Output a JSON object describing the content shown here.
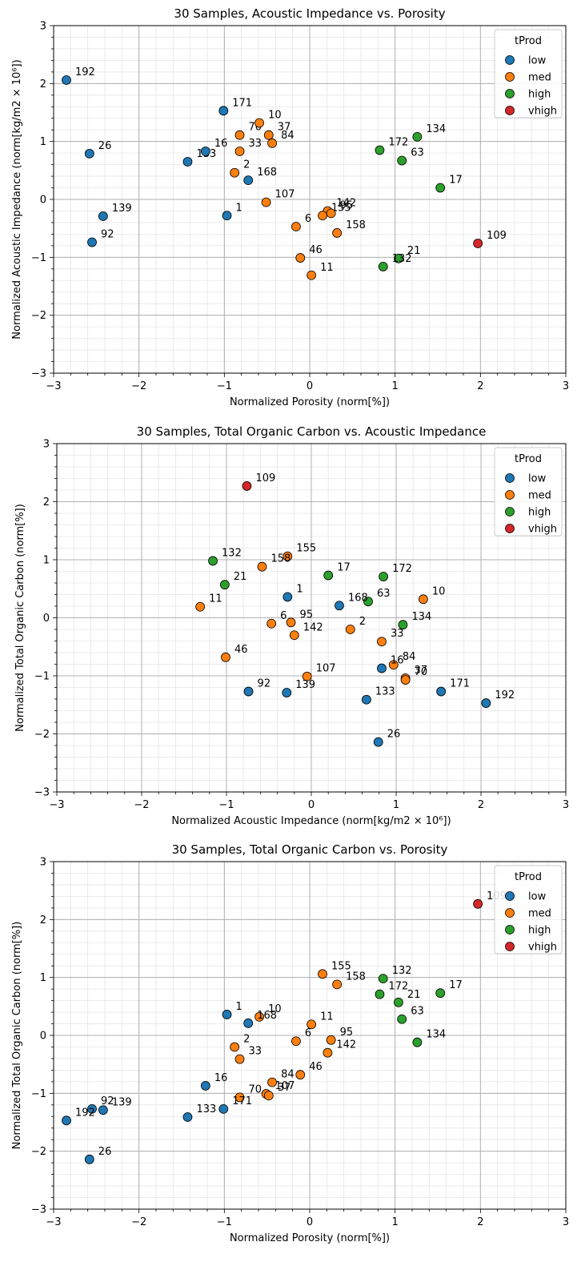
{
  "colors": {
    "low": "#1f77b4",
    "med": "#ff7f0e",
    "high": "#2ca02c",
    "vhigh": "#d62728"
  },
  "legend_title": "tProd",
  "legend_labels": [
    "low",
    "med",
    "high",
    "vhigh"
  ],
  "chart_data": [
    {
      "type": "scatter",
      "title": "30 Samples, Acoustic Impedance vs. Porosity",
      "xlabel": "Normalized Porosity (norm[%])",
      "ylabel": "Normalized Acoustic Impedance (norm[kg/m2 × 10⁶])",
      "xlim": [
        -3,
        3
      ],
      "ylim": [
        -3,
        3
      ],
      "xticks": [
        "−3",
        "−2",
        "−1",
        "0",
        "1",
        "2",
        "3"
      ],
      "yticks": [
        "−3",
        "−2",
        "−1",
        "0",
        "1",
        "2",
        "3"
      ],
      "grid": true,
      "legend": "top-right",
      "points": [
        {
          "label": "192",
          "x": -2.85,
          "y": 2.06,
          "c": "low"
        },
        {
          "label": "26",
          "x": -2.58,
          "y": 0.79,
          "c": "low"
        },
        {
          "label": "133",
          "x": -1.43,
          "y": 0.65,
          "c": "low"
        },
        {
          "label": "16",
          "x": -1.22,
          "y": 0.83,
          "c": "low"
        },
        {
          "label": "171",
          "x": -1.01,
          "y": 1.53,
          "c": "low"
        },
        {
          "label": "168",
          "x": -0.72,
          "y": 0.33,
          "c": "low"
        },
        {
          "label": "139",
          "x": -2.42,
          "y": -0.29,
          "c": "low"
        },
        {
          "label": "92",
          "x": -2.55,
          "y": -0.74,
          "c": "low"
        },
        {
          "label": "1",
          "x": -0.97,
          "y": -0.28,
          "c": "low"
        },
        {
          "label": "70",
          "x": -0.82,
          "y": 1.11,
          "c": "med"
        },
        {
          "label": "10",
          "x": -0.59,
          "y": 1.32,
          "c": "med"
        },
        {
          "label": "37",
          "x": -0.48,
          "y": 1.11,
          "c": "med"
        },
        {
          "label": "33",
          "x": -0.82,
          "y": 0.83,
          "c": "med"
        },
        {
          "label": "84",
          "x": -0.44,
          "y": 0.97,
          "c": "med"
        },
        {
          "label": "2",
          "x": -0.88,
          "y": 0.46,
          "c": "med"
        },
        {
          "label": "107",
          "x": -0.51,
          "y": -0.05,
          "c": "med"
        },
        {
          "label": "6",
          "x": -0.16,
          "y": -0.47,
          "c": "med"
        },
        {
          "label": "142",
          "x": 0.21,
          "y": -0.2,
          "c": "med"
        },
        {
          "label": "155",
          "x": 0.15,
          "y": -0.28,
          "c": "med"
        },
        {
          "label": "95",
          "x": 0.25,
          "y": -0.24,
          "c": "med"
        },
        {
          "label": "158",
          "x": 0.32,
          "y": -0.58,
          "c": "med"
        },
        {
          "label": "46",
          "x": -0.11,
          "y": -1.01,
          "c": "med"
        },
        {
          "label": "11",
          "x": 0.02,
          "y": -1.31,
          "c": "med"
        },
        {
          "label": "172",
          "x": 0.82,
          "y": 0.85,
          "c": "high"
        },
        {
          "label": "134",
          "x": 1.26,
          "y": 1.08,
          "c": "high"
        },
        {
          "label": "63",
          "x": 1.08,
          "y": 0.67,
          "c": "high"
        },
        {
          "label": "17",
          "x": 1.53,
          "y": 0.2,
          "c": "high"
        },
        {
          "label": "21",
          "x": 1.04,
          "y": -1.02,
          "c": "high"
        },
        {
          "label": "132",
          "x": 0.86,
          "y": -1.16,
          "c": "high"
        },
        {
          "label": "109",
          "x": 1.97,
          "y": -0.76,
          "c": "vhigh"
        }
      ]
    },
    {
      "type": "scatter",
      "title": "30 Samples, Total Organic Carbon vs. Acoustic Impedance",
      "xlabel": "Normalized Acoustic Impedance (norm[kg/m2 × 10⁶])",
      "ylabel": "Normalized Total Organic Carbon (norm[%])",
      "xlim": [
        -3,
        3
      ],
      "ylim": [
        -3,
        3
      ],
      "xticks": [
        "−3",
        "−2",
        "−1",
        "0",
        "1",
        "2",
        "3"
      ],
      "yticks": [
        "−3",
        "−2",
        "−1",
        "0",
        "1",
        "2",
        "3"
      ],
      "grid": true,
      "legend": "top-right",
      "points": [
        {
          "label": "109",
          "x": -0.76,
          "y": 2.27,
          "c": "vhigh"
        },
        {
          "label": "132",
          "x": -1.16,
          "y": 0.98,
          "c": "high"
        },
        {
          "label": "21",
          "x": -1.02,
          "y": 0.57,
          "c": "high"
        },
        {
          "label": "17",
          "x": 0.2,
          "y": 0.73,
          "c": "high"
        },
        {
          "label": "172",
          "x": 0.85,
          "y": 0.71,
          "c": "high"
        },
        {
          "label": "63",
          "x": 0.67,
          "y": 0.28,
          "c": "high"
        },
        {
          "label": "134",
          "x": 1.08,
          "y": -0.12,
          "c": "high"
        },
        {
          "label": "155",
          "x": -0.28,
          "y": 1.06,
          "c": "med"
        },
        {
          "label": "158",
          "x": -0.58,
          "y": 0.88,
          "c": "med"
        },
        {
          "label": "11",
          "x": -1.31,
          "y": 0.19,
          "c": "med"
        },
        {
          "label": "6",
          "x": -0.47,
          "y": -0.1,
          "c": "med"
        },
        {
          "label": "95",
          "x": -0.24,
          "y": -0.08,
          "c": "med"
        },
        {
          "label": "142",
          "x": -0.2,
          "y": -0.3,
          "c": "med"
        },
        {
          "label": "46",
          "x": -1.01,
          "y": -0.68,
          "c": "med"
        },
        {
          "label": "107",
          "x": -0.05,
          "y": -1.01,
          "c": "med"
        },
        {
          "label": "2",
          "x": 0.46,
          "y": -0.2,
          "c": "med"
        },
        {
          "label": "33",
          "x": 0.83,
          "y": -0.41,
          "c": "med"
        },
        {
          "label": "84",
          "x": 0.97,
          "y": -0.81,
          "c": "med"
        },
        {
          "label": "37",
          "x": 1.11,
          "y": -1.04,
          "c": "med"
        },
        {
          "label": "70",
          "x": 1.11,
          "y": -1.07,
          "c": "med"
        },
        {
          "label": "10",
          "x": 1.32,
          "y": 0.32,
          "c": "med"
        },
        {
          "label": "1",
          "x": -0.28,
          "y": 0.36,
          "c": "low"
        },
        {
          "label": "168",
          "x": 0.33,
          "y": 0.21,
          "c": "low"
        },
        {
          "label": "16",
          "x": 0.83,
          "y": -0.87,
          "c": "low"
        },
        {
          "label": "92",
          "x": -0.74,
          "y": -1.27,
          "c": "low"
        },
        {
          "label": "139",
          "x": -0.29,
          "y": -1.29,
          "c": "low"
        },
        {
          "label": "133",
          "x": 0.65,
          "y": -1.41,
          "c": "low"
        },
        {
          "label": "171",
          "x": 1.53,
          "y": -1.27,
          "c": "low"
        },
        {
          "label": "192",
          "x": 2.06,
          "y": -1.47,
          "c": "low"
        },
        {
          "label": "26",
          "x": 0.79,
          "y": -2.14,
          "c": "low"
        }
      ]
    },
    {
      "type": "scatter",
      "title": "30 Samples, Total Organic Carbon vs. Porosity",
      "xlabel": "Normalized Porosity (norm[%])",
      "ylabel": "Normalized Total Organic Carbon (norm[%])",
      "xlim": [
        -3,
        3
      ],
      "ylim": [
        -3,
        3
      ],
      "xticks": [
        "−3",
        "−2",
        "−1",
        "0",
        "1",
        "2",
        "3"
      ],
      "yticks": [
        "−3",
        "−2",
        "−1",
        "0",
        "1",
        "2",
        "3"
      ],
      "grid": true,
      "legend": "top-right",
      "points": [
        {
          "label": "109",
          "x": 1.97,
          "y": 2.27,
          "c": "vhigh"
        },
        {
          "label": "132",
          "x": 0.86,
          "y": 0.98,
          "c": "high"
        },
        {
          "label": "172",
          "x": 0.82,
          "y": 0.71,
          "c": "high"
        },
        {
          "label": "21",
          "x": 1.04,
          "y": 0.57,
          "c": "high"
        },
        {
          "label": "63",
          "x": 1.08,
          "y": 0.28,
          "c": "high"
        },
        {
          "label": "17",
          "x": 1.53,
          "y": 0.73,
          "c": "high"
        },
        {
          "label": "134",
          "x": 1.26,
          "y": -0.12,
          "c": "high"
        },
        {
          "label": "155",
          "x": 0.15,
          "y": 1.06,
          "c": "med"
        },
        {
          "label": "158",
          "x": 0.32,
          "y": 0.88,
          "c": "med"
        },
        {
          "label": "10",
          "x": -0.59,
          "y": 0.32,
          "c": "med"
        },
        {
          "label": "11",
          "x": 0.02,
          "y": 0.19,
          "c": "med"
        },
        {
          "label": "6",
          "x": -0.16,
          "y": -0.1,
          "c": "med"
        },
        {
          "label": "95",
          "x": 0.25,
          "y": -0.08,
          "c": "med"
        },
        {
          "label": "142",
          "x": 0.21,
          "y": -0.3,
          "c": "med"
        },
        {
          "label": "46",
          "x": -0.11,
          "y": -0.68,
          "c": "med"
        },
        {
          "label": "2",
          "x": -0.88,
          "y": -0.2,
          "c": "med"
        },
        {
          "label": "33",
          "x": -0.82,
          "y": -0.41,
          "c": "med"
        },
        {
          "label": "84",
          "x": -0.44,
          "y": -0.81,
          "c": "med"
        },
        {
          "label": "107",
          "x": -0.51,
          "y": -1.01,
          "c": "med"
        },
        {
          "label": "37",
          "x": -0.48,
          "y": -1.04,
          "c": "med"
        },
        {
          "label": "70",
          "x": -0.82,
          "y": -1.07,
          "c": "med"
        },
        {
          "label": "1",
          "x": -0.97,
          "y": 0.36,
          "c": "low"
        },
        {
          "label": "168",
          "x": -0.72,
          "y": 0.21,
          "c": "low"
        },
        {
          "label": "16",
          "x": -1.22,
          "y": -0.87,
          "c": "low"
        },
        {
          "label": "171",
          "x": -1.01,
          "y": -1.27,
          "c": "low"
        },
        {
          "label": "133",
          "x": -1.43,
          "y": -1.41,
          "c": "low"
        },
        {
          "label": "92",
          "x": -2.55,
          "y": -1.27,
          "c": "low"
        },
        {
          "label": "139",
          "x": -2.42,
          "y": -1.29,
          "c": "low"
        },
        {
          "label": "192",
          "x": -2.85,
          "y": -1.47,
          "c": "low"
        },
        {
          "label": "26",
          "x": -2.58,
          "y": -2.14,
          "c": "low"
        }
      ]
    }
  ]
}
